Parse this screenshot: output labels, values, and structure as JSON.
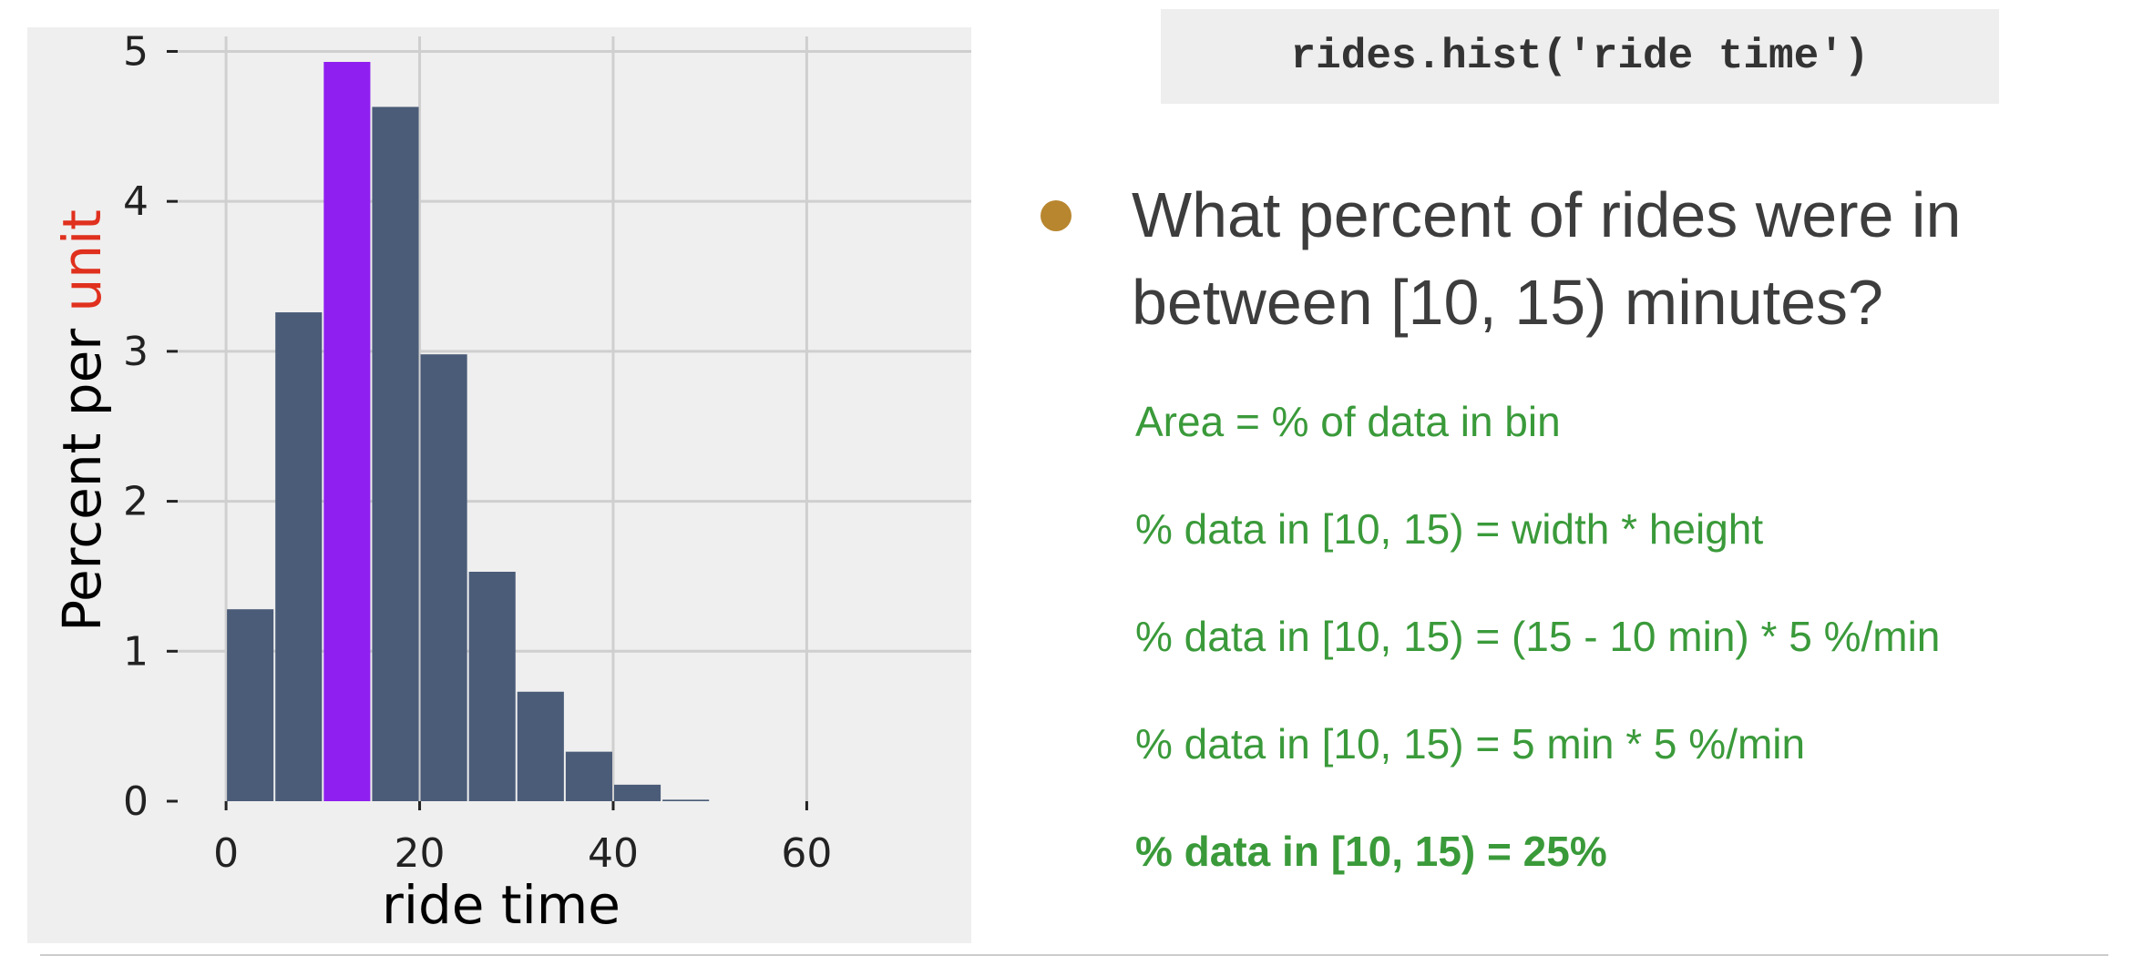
{
  "chart_data": {
    "type": "bar",
    "bin_edges": [
      0,
      5,
      10,
      15,
      20,
      25,
      30,
      35,
      40,
      45,
      50
    ],
    "values": [
      1.28,
      3.26,
      4.93,
      4.63,
      2.98,
      1.53,
      0.73,
      0.33,
      0.11,
      0.01
    ],
    "highlight_bin": 2,
    "colors": {
      "bar": "#4b5c78",
      "highlight": "#8f1ff0",
      "grid": "#cfcfcf",
      "ylabel_accent": "#e0301e"
    },
    "xlabel": "ride time",
    "ylabel_prefix": "Percent per ",
    "ylabel_accent": "unit",
    "xticks": [
      0,
      20,
      40,
      60
    ],
    "yticks": [
      0,
      1,
      2,
      3,
      4,
      5
    ],
    "xlim": [
      -5,
      77
    ],
    "ylim": [
      0,
      5.1
    ],
    "grid": true
  },
  "code": "rides.hist('ride time')",
  "question": "What percent of rides were in between [10, 15) minutes?",
  "steps": [
    "Area = % of data in bin",
    "% data in [10, 15) = width * height",
    "% data in [10, 15) = (15 - 10 min) * 5 %/min",
    "% data in [10, 15) = 5 min * 5 %/min",
    "% data in [10, 15) = 25%"
  ]
}
